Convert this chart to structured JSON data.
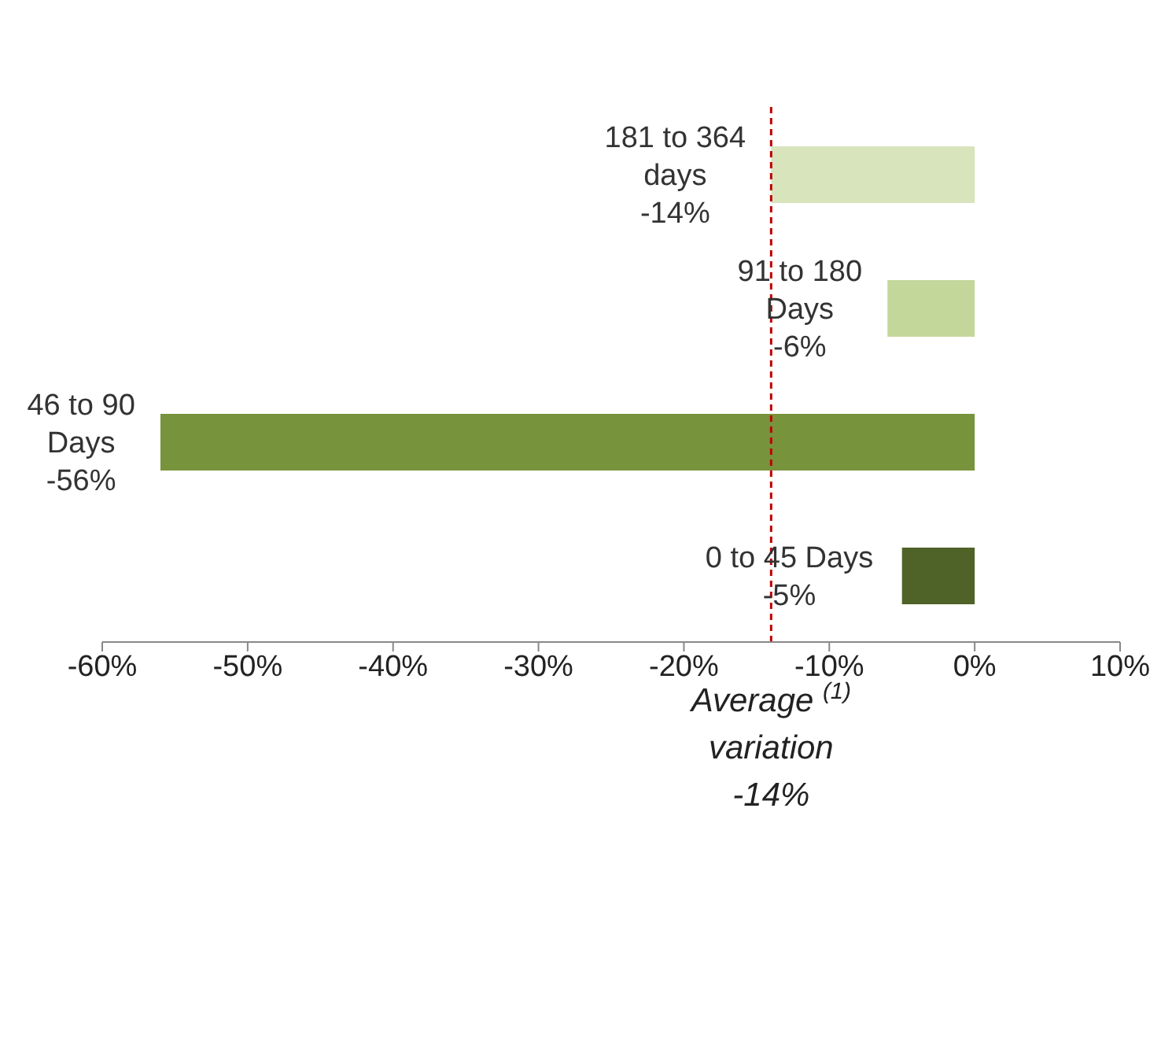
{
  "chart_data": {
    "type": "bar",
    "orientation": "horizontal",
    "categories": [
      "181 to 364 days",
      "91 to 180 Days",
      "46 to 90 Days",
      "0 to 45 Days"
    ],
    "values": [
      -14,
      -6,
      -56,
      -5
    ],
    "colors": [
      "#d8e4bc",
      "#c4d79b",
      "#77933c",
      "#4f6228"
    ],
    "value_labels": [
      "-14%",
      "-6%",
      "-56%",
      "-5%"
    ],
    "xlim": [
      -60,
      10
    ],
    "xticks": [
      {
        "value": -60,
        "label": "-60%"
      },
      {
        "value": -50,
        "label": "-50%"
      },
      {
        "value": -40,
        "label": "-40%"
      },
      {
        "value": -30,
        "label": "-30%"
      },
      {
        "value": -20,
        "label": "-20%"
      },
      {
        "value": -10,
        "label": "-10%"
      },
      {
        "value": 0,
        "label": "0%"
      },
      {
        "value": 10,
        "label": "10%"
      }
    ],
    "tick_labels": "x",
    "ref_lines": [
      {
        "axis": "x",
        "value": -14,
        "label": "Average $^{(1)}$\nvariation\n-14%",
        "color": "#c00000",
        "line_style": "dashed"
      }
    ]
  }
}
